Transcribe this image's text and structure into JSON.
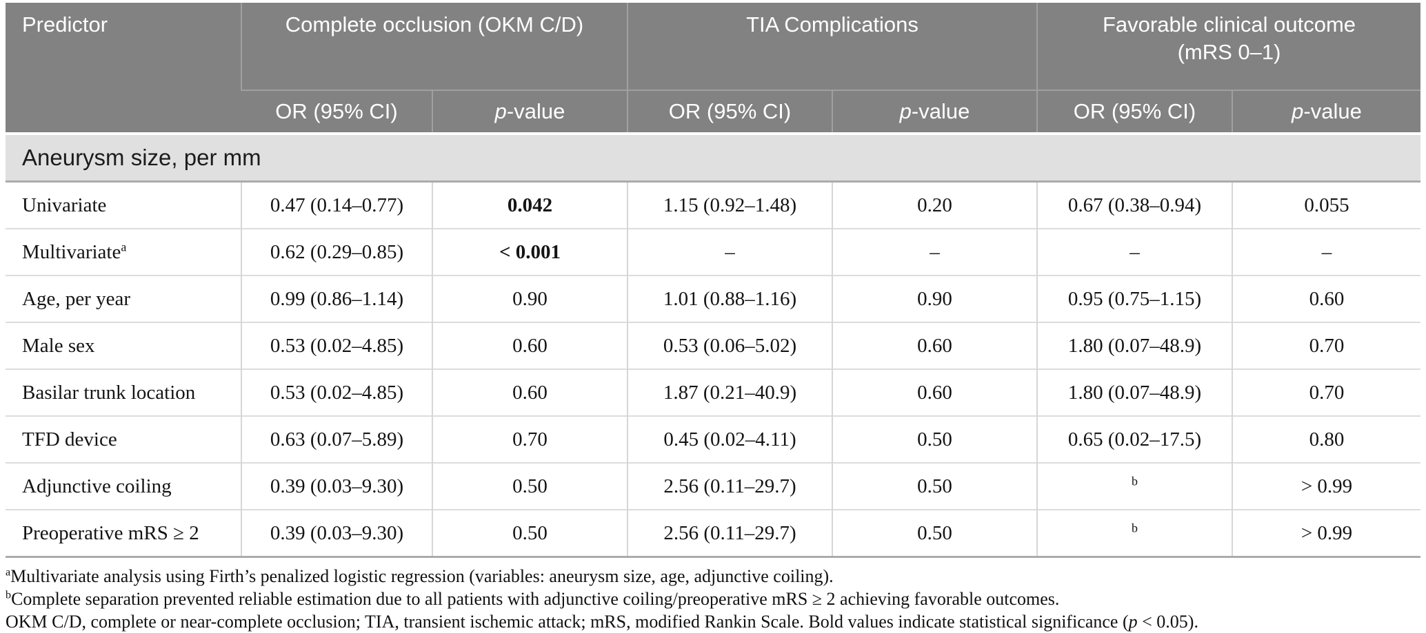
{
  "table": {
    "header": {
      "predictor_label": "Predictor",
      "groups": [
        {
          "label": "Complete occlusion (OKM C/D)"
        },
        {
          "label": "TIA Complications"
        },
        {
          "label": "Favorable clinical outcome (mRS 0–1)"
        }
      ],
      "or_label": "OR (95% CI)",
      "p_italic": "p",
      "p_rest": "-value"
    },
    "section": "Aneurysm size, per mm",
    "rows": [
      {
        "predictor": "Univariate",
        "predictor_sup": "",
        "cells": [
          {
            "text": "0.47 (0.14–0.77)"
          },
          {
            "text": "0.042",
            "bold": true
          },
          {
            "text": "1.15 (0.92–1.48)"
          },
          {
            "text": "0.20"
          },
          {
            "text": "0.67 (0.38–0.94)"
          },
          {
            "text": "0.055"
          }
        ]
      },
      {
        "predictor": "Multivariate",
        "predictor_sup": "a",
        "cells": [
          {
            "text": "0.62 (0.29–0.85)"
          },
          {
            "text": "< 0.001",
            "bold": true
          },
          {
            "text": "–"
          },
          {
            "text": "–"
          },
          {
            "text": "–"
          },
          {
            "text": "–"
          }
        ]
      },
      {
        "predictor": "Age, per year",
        "predictor_sup": "",
        "cells": [
          {
            "text": "0.99 (0.86–1.14)"
          },
          {
            "text": "0.90"
          },
          {
            "text": "1.01 (0.88–1.16)"
          },
          {
            "text": "0.90"
          },
          {
            "text": "0.95 (0.75–1.15)"
          },
          {
            "text": "0.60"
          }
        ]
      },
      {
        "predictor": "Male sex",
        "predictor_sup": "",
        "cells": [
          {
            "text": "0.53 (0.02–4.85)"
          },
          {
            "text": "0.60"
          },
          {
            "text": "0.53 (0.06–5.02)"
          },
          {
            "text": "0.60"
          },
          {
            "text": "1.80 (0.07–48.9)"
          },
          {
            "text": "0.70"
          }
        ]
      },
      {
        "predictor": "Basilar trunk location",
        "predictor_sup": "",
        "cells": [
          {
            "text": "0.53 (0.02–4.85)"
          },
          {
            "text": "0.60"
          },
          {
            "text": "1.87 (0.21–40.9)"
          },
          {
            "text": "0.60"
          },
          {
            "text": "1.80 (0.07–48.9)"
          },
          {
            "text": "0.70"
          }
        ]
      },
      {
        "predictor": "TFD device",
        "predictor_sup": "",
        "cells": [
          {
            "text": "0.63 (0.07–5.89)"
          },
          {
            "text": "0.70"
          },
          {
            "text": "0.45 (0.02–4.11)"
          },
          {
            "text": "0.50"
          },
          {
            "text": "0.65 (0.02–17.5)"
          },
          {
            "text": "0.80"
          }
        ]
      },
      {
        "predictor": "Adjunctive coiling",
        "predictor_sup": "",
        "cells": [
          {
            "text": "0.39 (0.03–9.30)"
          },
          {
            "text": "0.50"
          },
          {
            "text": "2.56 (0.11–29.7)"
          },
          {
            "text": "0.50"
          },
          {
            "text": "",
            "sup": "b"
          },
          {
            "text": "> 0.99"
          }
        ]
      },
      {
        "predictor": "Preoperative mRS ≥ 2",
        "predictor_sup": "",
        "cells": [
          {
            "text": "0.39 (0.03–9.30)"
          },
          {
            "text": "0.50"
          },
          {
            "text": "2.56 (0.11–29.7)"
          },
          {
            "text": "0.50"
          },
          {
            "text": "",
            "sup": "b"
          },
          {
            "text": "> 0.99"
          }
        ]
      }
    ]
  },
  "footnotes": [
    {
      "sup": "a",
      "parts": [
        {
          "t": "Multivariate analysis using Firth’s penalized logistic regression (variables: aneurysm size, age, adjunctive coiling)."
        }
      ]
    },
    {
      "sup": "b",
      "parts": [
        {
          "t": "Complete separation prevented reliable estimation due to all patients with adjunctive coiling/preoperative mRS ≥ 2 achieving favorable outcomes."
        }
      ]
    },
    {
      "sup": "",
      "parts": [
        {
          "t": "OKM C/D, complete or near-complete occlusion; TIA, transient ischemic attack; mRS, modified Rankin Scale. Bold values indicate statistical significance ("
        },
        {
          "t": "p",
          "i": true
        },
        {
          "t": " < 0.05)."
        }
      ]
    }
  ]
}
